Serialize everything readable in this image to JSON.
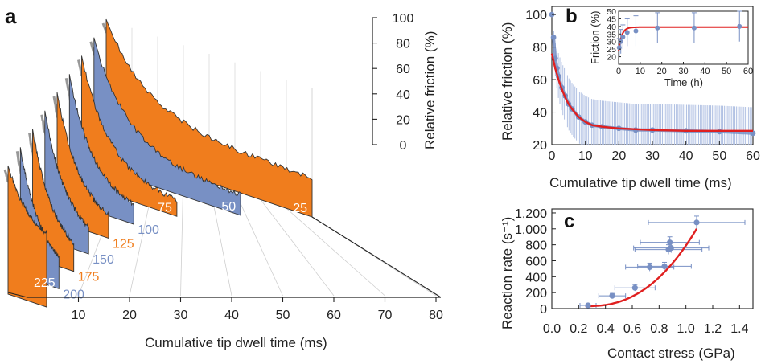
{
  "chart_data": [
    {
      "panel_label": "a",
      "type": "area",
      "view": "3d-waterfall",
      "xlabel": "Cumulative tip dwell time (ms)",
      "zlabel": "Relative friction (%)",
      "x_ticks": [
        "10",
        "20",
        "30",
        "40",
        "50",
        "60",
        "70",
        "80"
      ],
      "z_ticks": [
        "0",
        "20",
        "40",
        "60",
        "80",
        "100"
      ],
      "xlim": [
        0,
        80
      ],
      "zlim": [
        0,
        100
      ],
      "colors": {
        "orange": "#f07d1d",
        "blue": "#7890c4"
      },
      "series": [
        {
          "name": "225 nN",
          "load": 225,
          "color": "orange",
          "duration_ms": 15,
          "y0": 100,
          "y_end": 50
        },
        {
          "name": "200",
          "load": 200,
          "color": "blue",
          "duration_ms": 15,
          "y0": 100,
          "y_end": 12
        },
        {
          "name": "175",
          "load": 175,
          "color": "orange",
          "duration_ms": 16,
          "y0": 100,
          "y_end": 10
        },
        {
          "name": "150",
          "load": 150,
          "color": "blue",
          "duration_ms": 17,
          "y0": 100,
          "y_end": 10
        },
        {
          "name": "125",
          "load": 125,
          "color": "orange",
          "duration_ms": 20,
          "y0": 100,
          "y_end": 10
        },
        {
          "name": "100",
          "load": 100,
          "color": "blue",
          "duration_ms": 25,
          "y0": 100,
          "y_end": 10
        },
        {
          "name": "75",
          "load": 75,
          "color": "orange",
          "duration_ms": 37,
          "y0": 100,
          "y_end": 10
        },
        {
          "name": "50",
          "load": 50,
          "color": "blue",
          "duration_ms": 57,
          "y0": 100,
          "y_end": 15
        },
        {
          "name": "25",
          "load": 25,
          "color": "orange",
          "duration_ms": 80,
          "y0": 100,
          "y_end": 30
        }
      ]
    },
    {
      "panel_label": "b",
      "type": "line",
      "xlabel": "Cumulative tip dwell time (ms)",
      "ylabel": "Relative friction (%)",
      "xlim": [
        0,
        60
      ],
      "ylim": [
        20,
        105
      ],
      "x_ticks": [
        "0",
        "10",
        "20",
        "30",
        "40",
        "50",
        "60"
      ],
      "y_ticks": [
        "20",
        "40",
        "60",
        "80",
        "100"
      ],
      "series": [
        {
          "role": "data",
          "color": "#7890c4",
          "x": [
            0,
            0.5,
            1,
            1.5,
            2,
            3,
            4,
            5,
            6,
            8,
            10,
            12,
            15,
            20,
            25,
            30,
            40,
            50,
            60
          ],
          "y": [
            100,
            86,
            73,
            67,
            62,
            55,
            50,
            45,
            42,
            37,
            34,
            32,
            31,
            30,
            29,
            29,
            28.5,
            28,
            27
          ],
          "err": [
            0,
            6,
            10,
            12,
            14,
            15,
            16,
            16,
            16,
            16,
            16,
            16,
            16,
            16,
            16,
            16,
            16,
            16,
            16
          ]
        },
        {
          "role": "fit",
          "color": "#e02020",
          "x": [
            0,
            1,
            2,
            3,
            4,
            5,
            6,
            8,
            10,
            12,
            15,
            20,
            25,
            30,
            40,
            50,
            60
          ],
          "y": [
            76,
            67,
            60,
            54,
            49,
            45,
            42,
            37,
            34,
            32,
            31,
            30,
            29.5,
            29,
            28.5,
            28.5,
            28.5
          ]
        }
      ],
      "inset": {
        "xlabel": "Time (h)",
        "ylabel": "Friction (%)",
        "xlim": [
          0,
          60
        ],
        "ylim": [
          15,
          50
        ],
        "x_ticks": [
          "0",
          "10",
          "20",
          "30",
          "40",
          "50",
          "60"
        ],
        "y_ticks": [
          "20",
          "25",
          "30",
          "35",
          "40",
          "45",
          "50"
        ],
        "points": [
          {
            "x": 0.3,
            "y": 26,
            "err": 6
          },
          {
            "x": 1,
            "y": 30,
            "err": 8
          },
          {
            "x": 2,
            "y": 33,
            "err": 8
          },
          {
            "x": 4,
            "y": 36,
            "err": 9
          },
          {
            "x": 8,
            "y": 37,
            "err": 10
          },
          {
            "x": 18,
            "y": 39,
            "err": 10
          },
          {
            "x": 35,
            "y": 39,
            "err": 10
          },
          {
            "x": 56,
            "y": 40,
            "err": 10
          }
        ],
        "fit": {
          "plateau": 39.5,
          "start": 24,
          "rate": 0.7
        }
      }
    },
    {
      "panel_label": "c",
      "type": "scatter",
      "xlabel": "Contact stress (GPa)",
      "ylabel": "Reaction rate (s⁻¹)",
      "xlim": [
        0,
        1.5
      ],
      "ylim": [
        0,
        1250
      ],
      "x_ticks": [
        "0.0",
        "0.2",
        "0.4",
        "0.6",
        "0.8",
        "1.0",
        "1.2",
        "1.4"
      ],
      "y_ticks": [
        "0",
        "200",
        "400",
        "600",
        "800",
        "1,000",
        "1,200"
      ],
      "points": [
        {
          "x": 0.27,
          "y": 40,
          "xerr": 0.06,
          "yerr": 25
        },
        {
          "x": 0.45,
          "y": 160,
          "xerr": 0.1,
          "yerr": 30
        },
        {
          "x": 0.62,
          "y": 260,
          "xerr": 0.15,
          "yerr": 40
        },
        {
          "x": 0.73,
          "y": 520,
          "xerr": 0.18,
          "yerr": 50
        },
        {
          "x": 0.84,
          "y": 530,
          "xerr": 0.2,
          "yerr": 50
        },
        {
          "x": 0.87,
          "y": 740,
          "xerr": 0.25,
          "yerr": 60
        },
        {
          "x": 0.88,
          "y": 830,
          "xerr": 0.22,
          "yerr": 70
        },
        {
          "x": 0.89,
          "y": 760,
          "xerr": 0.28,
          "yerr": 60
        },
        {
          "x": 1.08,
          "y": 1080,
          "xerr": 0.36,
          "yerr": 80
        }
      ],
      "fit": {
        "color": "#e02020",
        "x0": 0.25,
        "x1": 1.08,
        "y0": 30,
        "y1": 1000,
        "power": 2.4
      }
    }
  ]
}
